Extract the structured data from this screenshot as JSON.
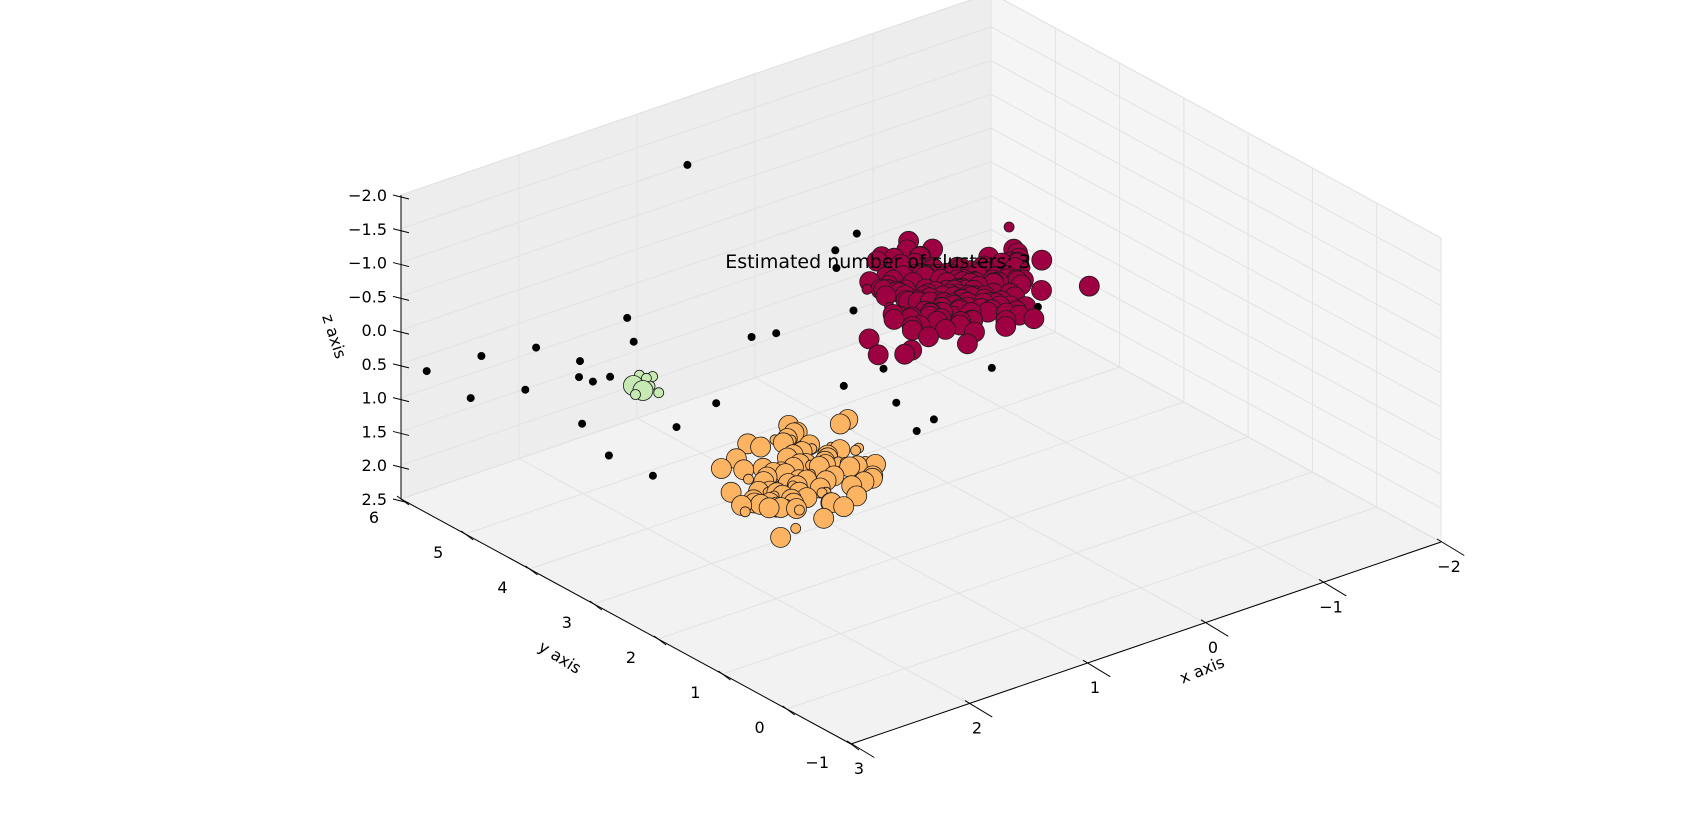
{
  "chart_data": {
    "type": "scatter",
    "projection": "3d",
    "title": "Estimated number of clusters: 3",
    "xlabel": "x axis",
    "ylabel": "y axis",
    "zlabel": "z axis",
    "x_ticks": [
      "3",
      "2",
      "1",
      "0",
      "−1",
      "−2"
    ],
    "y_ticks": [
      "−1",
      "0",
      "1",
      "2",
      "3",
      "4",
      "5",
      "6"
    ],
    "z_ticks": [
      "−2.0",
      "−1.5",
      "−1.0",
      "−0.5",
      "0.0",
      "0.5",
      "1.0",
      "1.5",
      "2.0",
      "2.5"
    ],
    "xlim": [
      3,
      -2
    ],
    "ylim": [
      -1,
      6
    ],
    "zlim": [
      -2.0,
      2.5
    ],
    "grid": true,
    "marker_sizes": {
      "core": 10,
      "border": 5,
      "noise": 4
    },
    "series": [
      {
        "color": "#9e0142",
        "center": [
          -0.6,
          4.0,
          0.5
        ],
        "spread": [
          0.55,
          0.55,
          0.45
        ],
        "n_core": 160,
        "n_border": 14
      },
      {
        "color": "#fdb462",
        "center": [
          1.8,
          2.0,
          0.8
        ],
        "spread": [
          0.45,
          0.45,
          0.45
        ],
        "n_core": 70,
        "n_border": 25
      },
      {
        "color": "#c7e9b4",
        "center": [
          2.0,
          4.0,
          0.3
        ],
        "spread": [
          0.15,
          0.15,
          0.15
        ],
        "n_core": 2,
        "n_border": 6
      },
      {
        "color": "#000000",
        "noise": true,
        "points": [
          [
            3.0,
            5.6,
            0.4
          ],
          [
            2.9,
            5.1,
            0.6
          ],
          [
            2.7,
            5.3,
            0.2
          ],
          [
            2.4,
            5.0,
            0.1
          ],
          [
            2.6,
            4.8,
            0.5
          ],
          [
            2.2,
            4.7,
            0.5
          ],
          [
            2.3,
            4.5,
            0.1
          ],
          [
            2.3,
            4.3,
            0.3
          ],
          [
            2.1,
            4.4,
            0.4
          ],
          [
            1.9,
            4.5,
            -0.3
          ],
          [
            2.5,
            4.1,
            0.7
          ],
          [
            2.6,
            3.5,
            0.8
          ],
          [
            2.5,
            3.0,
            0.9
          ],
          [
            2.3,
            3.0,
            0.3
          ],
          [
            1.8,
            3.3,
            0.4
          ],
          [
            0.9,
            5.4,
            -1.5
          ],
          [
            -0.1,
            4.6,
            -0.3
          ],
          [
            0.3,
            4.2,
            -0.5
          ],
          [
            0.4,
            4.0,
            -0.4
          ],
          [
            0.2,
            4.1,
            0.4
          ],
          [
            -0.2,
            3.9,
            -0.3
          ],
          [
            1.5,
            3.3,
            -0.4
          ],
          [
            1.4,
            3.1,
            -0.5
          ],
          [
            1.1,
            2.6,
            0.2
          ],
          [
            0.7,
            2.2,
            0.9
          ],
          [
            -0.1,
            2.5,
            0.6
          ],
          [
            0.6,
            2.7,
            0.8
          ],
          [
            0.5,
            2.3,
            0.9
          ],
          [
            0.6,
            2.9,
            0.4
          ],
          [
            -0.6,
            2.7,
            0.1
          ],
          [
            1.9,
            4.4,
            0.0
          ]
        ]
      }
    ]
  }
}
